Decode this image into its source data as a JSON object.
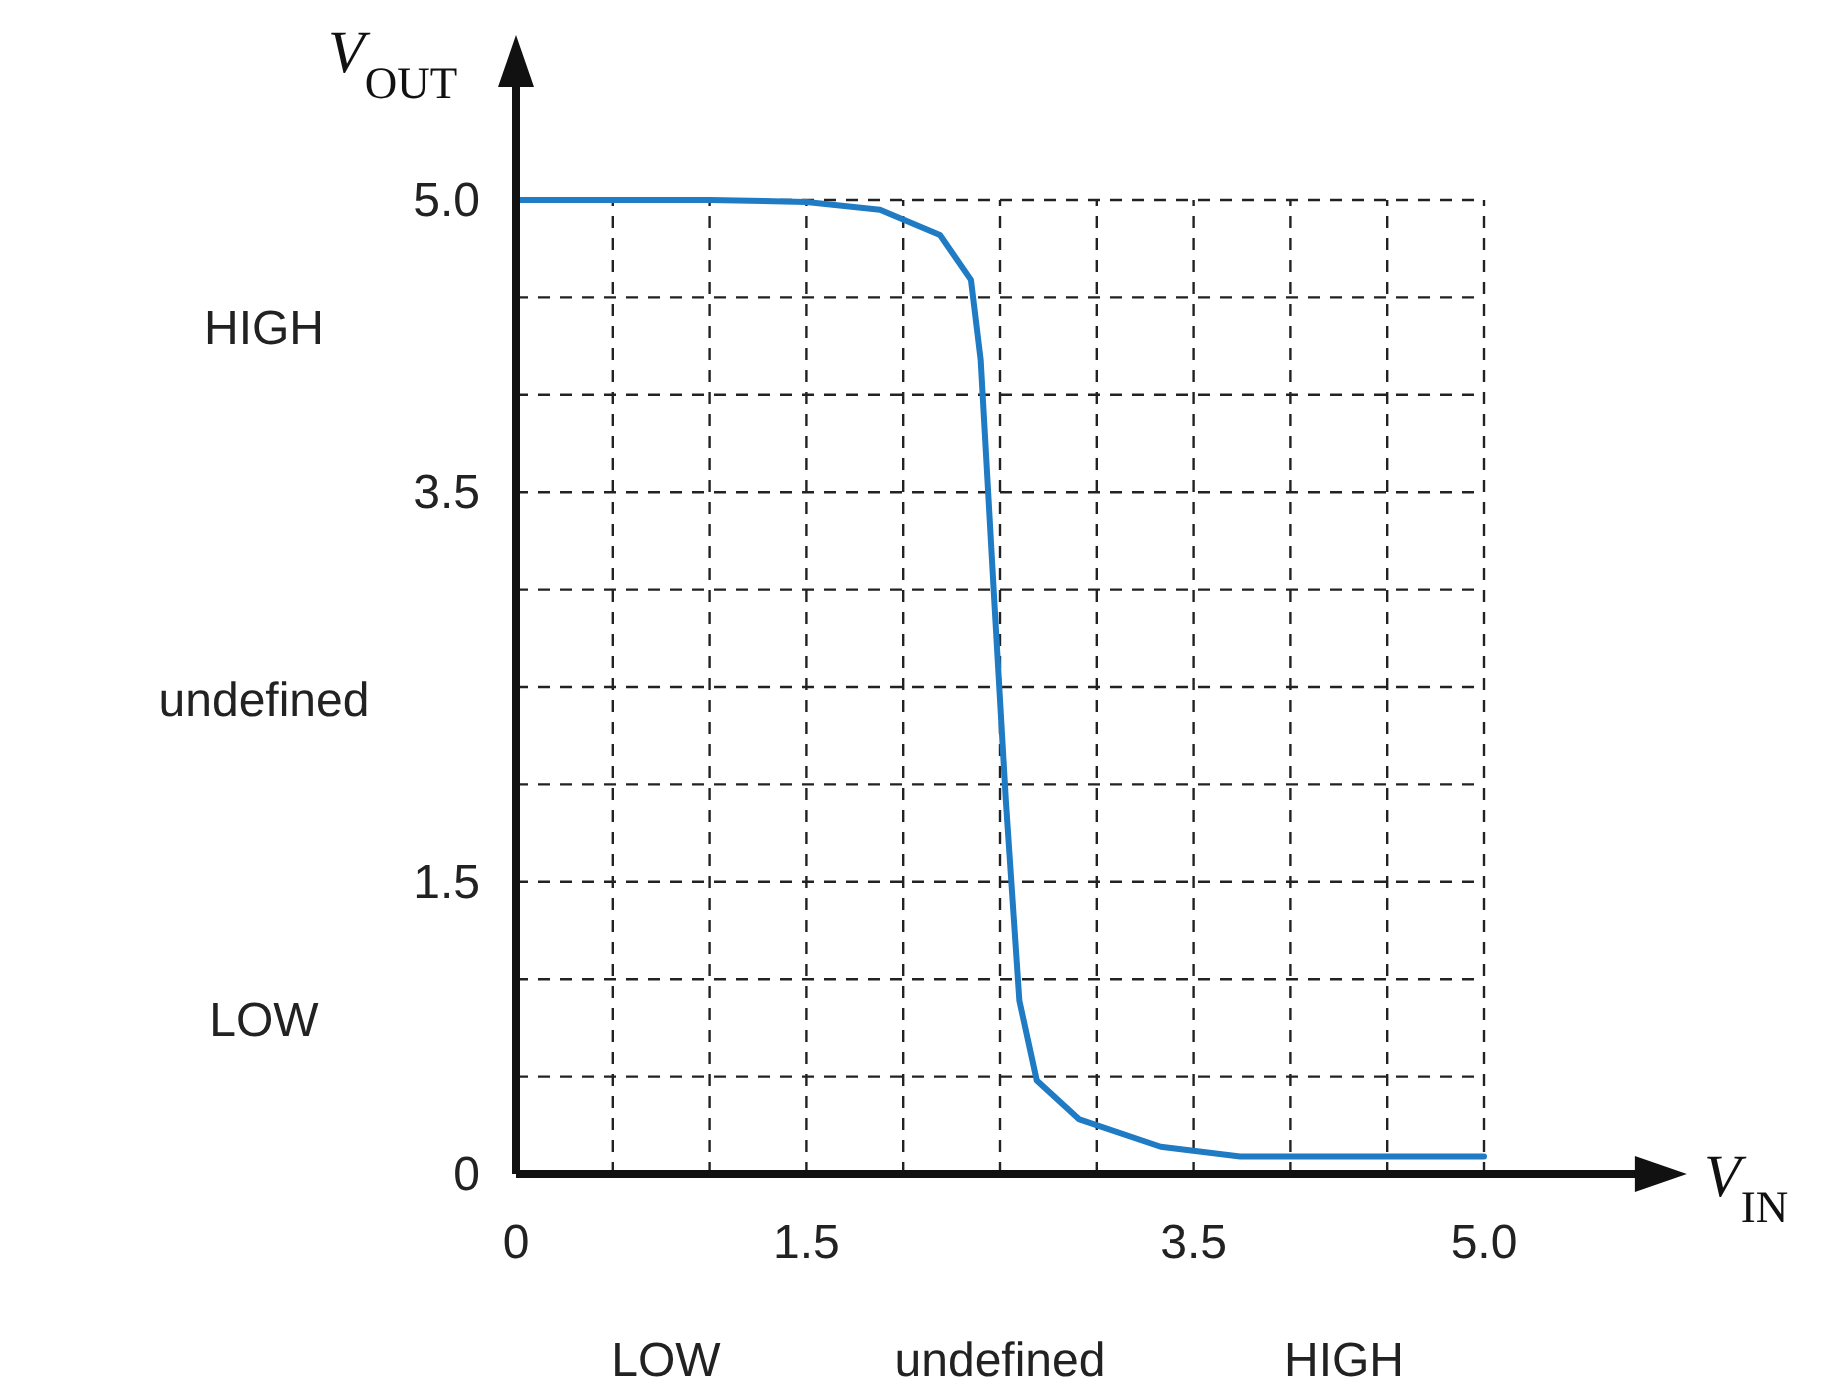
{
  "chart_data": {
    "type": "line",
    "xlabel": "V$_{IN}$",
    "ylabel": "V$_{OUT}$",
    "x": [
      0,
      0.5,
      1.0,
      1.5,
      1.88,
      2.19,
      2.35,
      2.4,
      2.47,
      2.53,
      2.6,
      2.69,
      2.91,
      3.33,
      3.74,
      4.5,
      5.0
    ],
    "series": [
      {
        "color": "#1f7bc4",
        "values": [
          5.0,
          5.0,
          5.0,
          4.99,
          4.95,
          4.82,
          4.59,
          4.18,
          2.95,
          1.92,
          0.89,
          0.48,
          0.28,
          0.14,
          0.09,
          0.09,
          0.09
        ]
      }
    ],
    "xlim": [
      0,
      5.8
    ],
    "ylim": [
      0,
      5.6
    ],
    "xticks": [
      0,
      {
        "value": 0.5,
        "label": null
      },
      {
        "value": 1.0,
        "label": null
      },
      1.5,
      {
        "value": 2.0,
        "label": null
      },
      {
        "value": 2.5,
        "label": null
      },
      {
        "value": 3.0,
        "label": null
      },
      3.5,
      {
        "value": 4.0,
        "label": null
      },
      {
        "value": 4.5,
        "label": null
      },
      {
        "value": 5.0,
        "label": "5.0"
      }
    ],
    "yticks": [
      0,
      {
        "value": 0.5,
        "label": null
      },
      {
        "value": 1.0,
        "label": null
      },
      1.5,
      {
        "value": 2.0,
        "label": null
      },
      {
        "value": 2.5,
        "label": null
      },
      {
        "value": 3.0,
        "label": null
      },
      3.5,
      {
        "value": 4.0,
        "label": null
      },
      {
        "value": 4.5,
        "label": null
      },
      {
        "value": 5.0,
        "label": "5.0"
      }
    ],
    "annotations": [
      "LOW",
      "undefined",
      "HIGH",
      "LOW",
      "undefined",
      "HIGH"
    ],
    "grid": true,
    "marker": "none",
    "line_style": "solid"
  }
}
